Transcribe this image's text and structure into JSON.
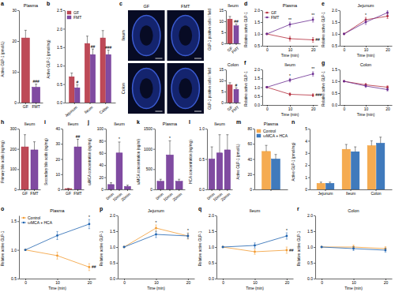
{
  "chart_data": [
    {
      "panel_label": "a",
      "type": "bar",
      "title": "Plasma",
      "y_label": "Active GLP-1 (pmol/L)",
      "categories": [
        "GF",
        "FMT"
      ],
      "values": [
        21,
        5
      ],
      "errors": [
        2.5,
        1
      ],
      "colors": [
        "#b22a3a",
        "#6a2c91"
      ],
      "ylim": [
        0,
        30
      ],
      "yticks": [
        0,
        10,
        20,
        30
      ],
      "annotations": [
        {
          "text": "###",
          "index": 1
        }
      ]
    },
    {
      "panel_label": "b",
      "type": "bar",
      "y_label": "Active GLP-1 (pmol/mg)",
      "categories": [
        "Jejunum",
        "Ileum",
        "Colon"
      ],
      "series": [
        {
          "name": "GF",
          "color": "#b22a3a",
          "values": [
            0.7,
            1.6,
            1.75
          ],
          "errors": [
            0.1,
            0.2,
            0.2
          ]
        },
        {
          "name": "FMT",
          "color": "#6a2c91",
          "values": [
            0.4,
            1.3,
            1.3
          ],
          "errors": [
            0.08,
            0.15,
            0.12
          ]
        }
      ],
      "ylim": [
        0,
        2.5
      ],
      "yticks": [
        {
          "value": 0,
          "label": "0.0"
        },
        0.5,
        {
          "value": 1,
          "label": "1.0"
        },
        1.5,
        {
          "value": 2,
          "label": "2.0"
        },
        2.5
      ],
      "legend": "top-left",
      "annotations": [
        {
          "text": "#",
          "series": 1,
          "index": 0
        },
        {
          "text": "##",
          "series": 1,
          "index": 1
        },
        {
          "text": "###",
          "series": 1,
          "index": 2
        }
      ]
    },
    {
      "panel_label": "c",
      "type": "image",
      "columns": [
        "GF",
        "FMT"
      ],
      "rows": [
        "Ileum",
        "Colon"
      ]
    },
    {
      "type": "bar",
      "title": "Ileum",
      "y_label": "GLP-1 positive cells / field",
      "categories": [
        "GF",
        "FMT"
      ],
      "values": [
        11,
        8
      ],
      "errors": [
        1.2,
        0.8
      ],
      "colors": [
        "#b22a3a",
        "#6a2c91"
      ],
      "ylim": [
        0,
        15
      ],
      "yticks": [
        0,
        5,
        10,
        15
      ],
      "annotations": [
        {
          "text": "##",
          "index": 1
        }
      ]
    },
    {
      "type": "bar",
      "title": "Colon",
      "y_label": "GLP-1 positive cells / field",
      "categories": [
        "GF",
        "FMT"
      ],
      "values": [
        8,
        6
      ],
      "errors": [
        1,
        0.7
      ],
      "colors": [
        "#b22a3a",
        "#6a2c91"
      ],
      "ylim": [
        0,
        15
      ],
      "yticks": [
        0,
        5,
        10,
        15
      ],
      "annotations": [
        {
          "text": "#",
          "index": 1
        }
      ]
    },
    {
      "panel_label": "d",
      "type": "line",
      "title": "Plasma",
      "x_label": "Time (min)",
      "y_label": "Relative active GLP-1",
      "x": [
        0,
        10,
        20
      ],
      "xlim": [
        -2,
        22
      ],
      "xticks": [
        0,
        10,
        20
      ],
      "ylim": [
        0.5,
        2
      ],
      "yticks": [
        0.5,
        {
          "value": 1,
          "label": "1.0"
        },
        1.5,
        {
          "value": 2,
          "label": "2.0"
        }
      ],
      "legend": "top-left",
      "series": [
        {
          "name": "GF",
          "color": "#b22a3a",
          "values": [
            1,
            0.8,
            0.75
          ],
          "errors": [
            0,
            0.1,
            0.1
          ]
        },
        {
          "name": "FMT",
          "color": "#6a2c91",
          "values": [
            1,
            1.4,
            1.6
          ],
          "errors": [
            0,
            0.1,
            0.1
          ]
        }
      ],
      "annotations": [
        {
          "text": "**",
          "series": 1,
          "index": 1
        },
        {
          "text": "**",
          "series": 1,
          "index": 2
        },
        {
          "text": "##",
          "series": 0,
          "index": 2
        }
      ]
    },
    {
      "panel_label": "e",
      "type": "line",
      "title": "Jejunum",
      "x_label": "Time (min)",
      "y_label": "Relative active GLP-1",
      "x": [
        0,
        10,
        20
      ],
      "xlim": [
        -2,
        22
      ],
      "xticks": [
        0,
        10,
        20
      ],
      "ylim": [
        0.5,
        2
      ],
      "yticks": [
        0.5,
        {
          "value": 1,
          "label": "1.0"
        },
        1.5,
        {
          "value": 2,
          "label": "2.0"
        }
      ],
      "series": [
        {
          "name": "GF",
          "color": "#b22a3a",
          "values": [
            1,
            1.6,
            1.75
          ],
          "errors": [
            0,
            0.1,
            0.1
          ]
        },
        {
          "name": "FMT",
          "color": "#6a2c91",
          "values": [
            1,
            1.5,
            1.9
          ],
          "errors": [
            0,
            0.1,
            0.1
          ]
        }
      ],
      "annotations": [
        {
          "text": "*",
          "series": 0,
          "index": 1
        }
      ]
    },
    {
      "panel_label": "f",
      "type": "line",
      "title": "Ileum",
      "x_label": "Time (min)",
      "y_label": "Relative active GLP-1",
      "x": [
        0,
        10,
        20
      ],
      "xlim": [
        -2,
        22
      ],
      "xticks": [
        0,
        10,
        20
      ],
      "ylim": [
        0,
        2
      ],
      "yticks": [
        {
          "value": 0,
          "label": "0.0"
        },
        0.5,
        {
          "value": 1,
          "label": "1.0"
        },
        1.5,
        {
          "value": 2,
          "label": "2.0"
        }
      ],
      "series": [
        {
          "name": "GF",
          "color": "#b22a3a",
          "values": [
            1,
            0.6,
            0.55
          ],
          "errors": [
            0,
            0.08,
            0.08
          ]
        },
        {
          "name": "FMT",
          "color": "#6a2c91",
          "values": [
            1,
            1.4,
            1.75
          ],
          "errors": [
            0,
            0.1,
            0.12
          ]
        }
      ],
      "annotations": [
        {
          "text": "*",
          "series": 1,
          "index": 1
        },
        {
          "text": "**",
          "series": 1,
          "index": 2
        },
        {
          "text": "###",
          "series": 0,
          "index": 2
        }
      ]
    },
    {
      "panel_label": "g",
      "type": "line",
      "title": "Colon",
      "x_label": "Time (min)",
      "y_label": "Relative active GLP-1",
      "x": [
        0,
        10,
        20
      ],
      "xlim": [
        -2,
        22
      ],
      "xticks": [
        0,
        10,
        20
      ],
      "ylim": [
        0,
        1.5
      ],
      "yticks": [
        {
          "value": 0,
          "label": "0.0"
        },
        0.5,
        {
          "value": 1,
          "label": "1.0"
        },
        1.5
      ],
      "series": [
        {
          "name": "GF",
          "color": "#b22a3a",
          "values": [
            1,
            0.85,
            0.75
          ],
          "errors": [
            0,
            0.06,
            0.06
          ]
        },
        {
          "name": "FMT",
          "color": "#6a2c91",
          "values": [
            1,
            0.8,
            0.65
          ],
          "errors": [
            0,
            0.06,
            0.06
          ]
        }
      ]
    },
    {
      "panel_label": "h",
      "type": "bar",
      "title": "Ileum",
      "y_label": "Primary bile acids (ng/mg)",
      "categories": [
        "GF",
        "FMT"
      ],
      "values": [
        210,
        195
      ],
      "errors": [
        60,
        40
      ],
      "colors": [
        "#b22a3a",
        "#6a2c91"
      ],
      "ylim": [
        0,
        300
      ],
      "yticks": [
        0,
        100,
        200,
        300
      ]
    },
    {
      "panel_label": "i",
      "type": "bar",
      "title": "Ileum",
      "y_label": "Secondary bile acids (ng/mg)",
      "categories": [
        "GF",
        "FMT"
      ],
      "values": [
        0.5,
        28
      ],
      "errors": [
        0.2,
        5
      ],
      "colors": [
        "#b22a3a",
        "#6a2c91"
      ],
      "ylim": [
        0,
        40
      ],
      "yticks": [
        0,
        10,
        20,
        30,
        40
      ],
      "annotations": [
        {
          "text": "##",
          "index": 1
        }
      ]
    },
    {
      "panel_label": "j",
      "type": "bar",
      "title": "Ileum",
      "y_label": "ωMCA concentration (ng/mg)",
      "categories": [
        "0min",
        "10min",
        "20min"
      ],
      "values": [
        8,
        60,
        5
      ],
      "errors": [
        3,
        18,
        2
      ],
      "color": "#6a2c91",
      "ylim": [
        0,
        100
      ],
      "yticks": [
        0,
        20,
        40,
        60,
        80,
        100
      ],
      "annotations": [
        {
          "text": "*",
          "index": 1
        }
      ]
    },
    {
      "panel_label": "k",
      "type": "bar",
      "title": "Plasma",
      "y_label": "ωMCA concentration (ng/ml)",
      "categories": [
        "0min",
        "10min",
        "20min"
      ],
      "values": [
        200,
        850,
        200
      ],
      "errors": [
        50,
        350,
        50
      ],
      "color": "#6a2c91",
      "ylim": [
        0,
        1500
      ],
      "yticks": [
        0,
        500,
        1000,
        1500
      ],
      "annotations": [
        {
          "text": "*",
          "index": 1
        }
      ]
    },
    {
      "panel_label": "l",
      "type": "bar",
      "title": "Ileum",
      "y_label": "HCA concentration (ng/mg)",
      "categories": [
        "0min",
        "10min",
        "20min"
      ],
      "values": [
        0.5,
        0.6,
        0.65
      ],
      "errors": [
        0.2,
        0.3,
        0.25
      ],
      "color": "#6a2c91",
      "ylim": [
        0,
        1
      ],
      "yticks": [
        {
          "value": 0,
          "label": "0.0"
        },
        0.5,
        {
          "value": 1,
          "label": "1.0"
        }
      ]
    },
    {
      "panel_label": "m",
      "type": "bar",
      "title": "Plasma",
      "y_label": "Active GLP-1 (pmol/L)",
      "categories": [
        null
      ],
      "series": [
        {
          "name": "Control",
          "color": "#f39c32",
          "values": [
            50
          ],
          "errors": [
            8
          ]
        },
        {
          "name": "ωMCA + HCA",
          "color": "#1f63b0",
          "values": [
            40
          ],
          "errors": [
            6
          ]
        }
      ],
      "ylim": [
        0,
        80
      ],
      "yticks": [
        0,
        20,
        40,
        60,
        80
      ],
      "legend": "top-left"
    },
    {
      "panel_label": "n",
      "type": "bar",
      "y_label": "Active GLP-1 (pmol/mg)",
      "categories": [
        "Jejunum",
        "Ileum",
        "Colon"
      ],
      "series": [
        {
          "name": "Control",
          "color": "#f39c32",
          "values": [
            0.5,
            3.3,
            3.6
          ],
          "errors": [
            0.1,
            0.4,
            0.4
          ]
        },
        {
          "name": "ωMCA + HCA",
          "color": "#1f63b0",
          "values": [
            0.5,
            3.1,
            3.8
          ],
          "errors": [
            0.1,
            0.4,
            0.5
          ]
        }
      ],
      "ylim": [
        0,
        5
      ],
      "yticks": [
        0,
        1,
        2,
        3,
        4,
        5
      ]
    },
    {
      "panel_label": "o",
      "type": "line",
      "title": "Plasma",
      "x_label": "Time (min)",
      "y_label": "Relative active GLP-1",
      "x": [
        0,
        10,
        20
      ],
      "xlim": [
        -2,
        22
      ],
      "xticks": [
        0,
        10,
        20
      ],
      "ylim": [
        0.5,
        1.6
      ],
      "yticks": [
        0.5,
        {
          "value": 1,
          "label": "1.0"
        },
        1.5
      ],
      "legend": "top-left",
      "series": [
        {
          "name": "Control",
          "color": "#f39c32",
          "values": [
            1,
            0.9,
            0.7
          ],
          "errors": [
            0,
            0.06,
            0.06
          ]
        },
        {
          "name": "ωMCA + HCA",
          "color": "#1f63b0",
          "values": [
            1,
            1.25,
            1.45
          ],
          "errors": [
            0,
            0.07,
            0.08
          ]
        }
      ],
      "annotations": [
        {
          "text": "*",
          "series": 1,
          "index": 2
        },
        {
          "text": "##",
          "series": 0,
          "index": 2
        }
      ]
    },
    {
      "panel_label": "p",
      "type": "line",
      "title": "Jejunum",
      "x_label": "Time (min)",
      "y_label": "Relative active GLP-1",
      "x": [
        0,
        10,
        20
      ],
      "xlim": [
        -2,
        22
      ],
      "xticks": [
        0,
        10,
        20
      ],
      "ylim": [
        0,
        2
      ],
      "yticks": [
        {
          "value": 0,
          "label": "0.0"
        },
        0.5,
        {
          "value": 1,
          "label": "1.0"
        },
        1.5,
        {
          "value": 2,
          "label": "2.0"
        }
      ],
      "series": [
        {
          "name": "Control",
          "color": "#f39c32",
          "values": [
            1,
            1.6,
            1.35
          ],
          "errors": [
            0,
            0.1,
            0.1
          ]
        },
        {
          "name": "ωMCA + HCA",
          "color": "#1f63b0",
          "values": [
            1,
            1.4,
            1.35
          ],
          "errors": [
            0,
            0.1,
            0.08
          ]
        }
      ],
      "annotations": [
        {
          "text": "*",
          "series": 0,
          "index": 1
        },
        {
          "text": "*",
          "series": 1,
          "index": 2
        }
      ]
    },
    {
      "panel_label": "q",
      "type": "line",
      "title": "Ileum",
      "x_label": "Time (min)",
      "y_label": "Relative active GLP-1",
      "x": [
        0,
        10,
        20
      ],
      "xlim": [
        -2,
        22
      ],
      "xticks": [
        0,
        10,
        20
      ],
      "ylim": [
        0,
        2
      ],
      "yticks": [
        {
          "value": 0,
          "label": "0.0"
        },
        0.5,
        {
          "value": 1,
          "label": "1.0"
        },
        1.5,
        {
          "value": 2,
          "label": "2.0"
        }
      ],
      "series": [
        {
          "name": "Control",
          "color": "#f39c32",
          "values": [
            1,
            0.85,
            0.9
          ],
          "errors": [
            0,
            0.08,
            0.1
          ]
        },
        {
          "name": "ωMCA + HCA",
          "color": "#1f63b0",
          "values": [
            1,
            1.05,
            1.35
          ],
          "errors": [
            0,
            0.08,
            0.1
          ]
        }
      ],
      "annotations": [
        {
          "text": "*",
          "series": 1,
          "index": 2
        },
        {
          "text": "##",
          "series": 0,
          "index": 2
        }
      ]
    },
    {
      "panel_label": "r",
      "type": "line",
      "title": "Colon",
      "x_label": "Time (min)",
      "y_label": "Relative active GLP-1",
      "x": [
        0,
        10,
        20
      ],
      "xlim": [
        -2,
        22
      ],
      "xticks": [
        0,
        10,
        20
      ],
      "ylim": [
        0,
        2
      ],
      "yticks": [
        {
          "value": 0,
          "label": "0.0"
        },
        0.5,
        {
          "value": 1,
          "label": "1.0"
        },
        1.5,
        {
          "value": 2,
          "label": "2.0"
        }
      ],
      "series": [
        {
          "name": "Control",
          "color": "#f39c32",
          "values": [
            1,
            1,
            0.95
          ],
          "errors": [
            0,
            0.06,
            0.06
          ]
        },
        {
          "name": "ωMCA + HCA",
          "color": "#1f63b0",
          "values": [
            1,
            0.95,
            0.9
          ],
          "errors": [
            0,
            0.06,
            0.06
          ]
        }
      ]
    }
  ]
}
